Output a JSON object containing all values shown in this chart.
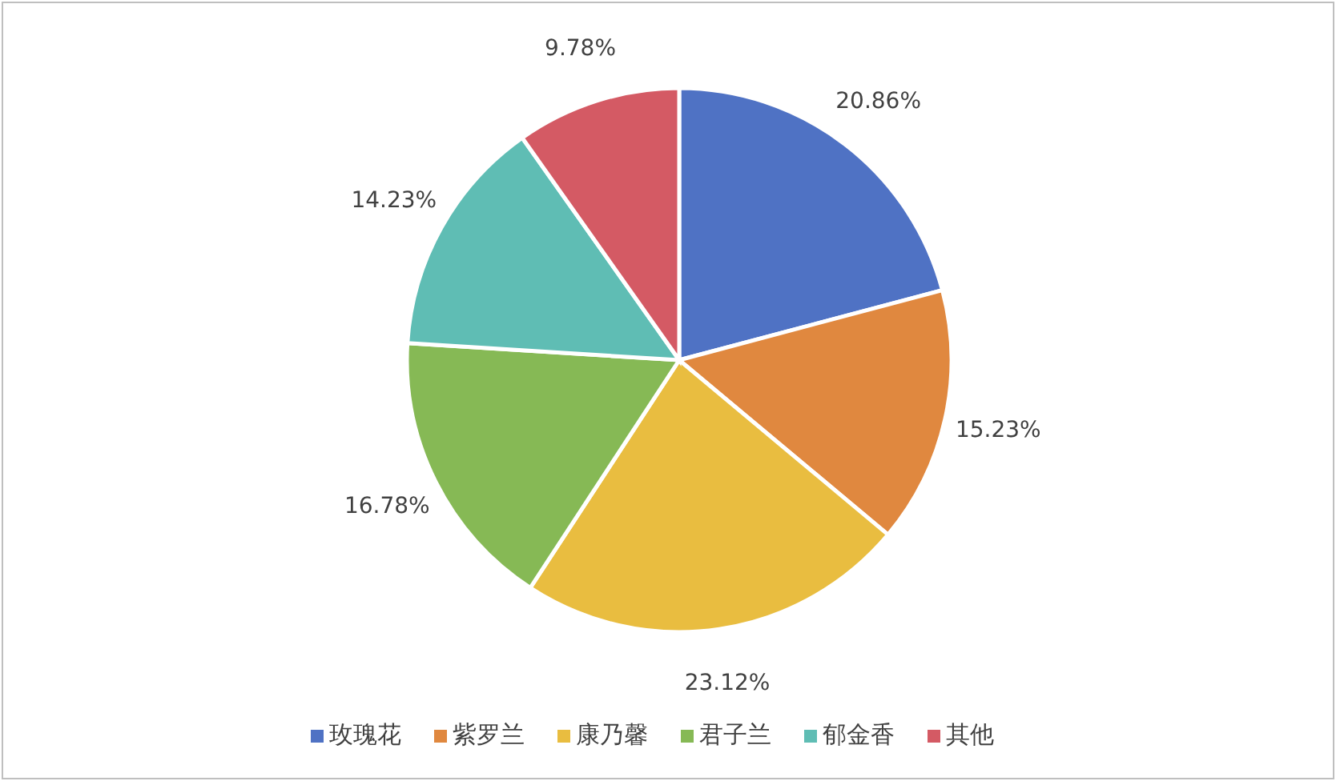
{
  "chart_data": {
    "type": "pie",
    "categories": [
      "玫瑰花",
      "紫罗兰",
      "康乃馨",
      "君子兰",
      "郁金香",
      "其他"
    ],
    "values": [
      20.86,
      15.23,
      23.12,
      16.78,
      14.23,
      9.78
    ],
    "colors": [
      "#4f72c4",
      "#e0883f",
      "#e9bd40",
      "#86b955",
      "#5fbdb4",
      "#d45a64"
    ],
    "value_labels": [
      "20.86%",
      "15.23%",
      "23.12%",
      "16.78%",
      "14.23%",
      "9.78%"
    ],
    "legend": "bottom"
  }
}
